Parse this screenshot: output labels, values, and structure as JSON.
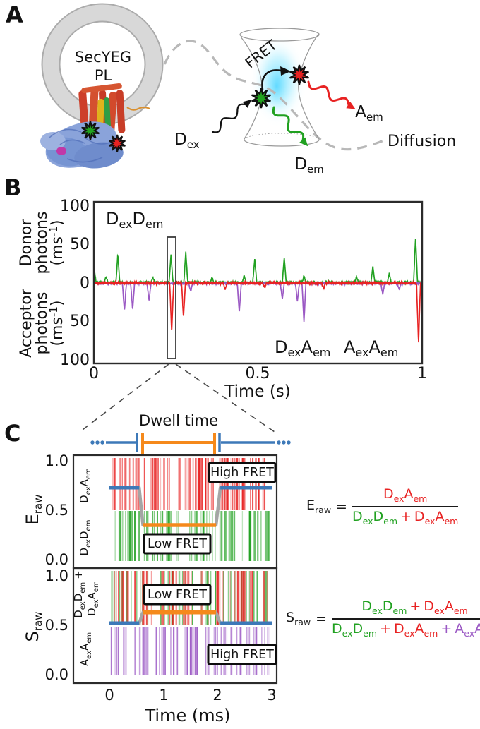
{
  "figure_labels": {
    "a": "A",
    "b": "B",
    "c": "C"
  },
  "terms": {
    "D": "D",
    "A": "A",
    "E": "E",
    "S": "S",
    "ex": "ex",
    "em": "em",
    "raw": "raw"
  },
  "misc": {
    "plus": "+",
    "eq": "=",
    "ms_open": "(ms",
    "ms_sup": "-1",
    "ms_close": ")"
  },
  "colors": {
    "green": "#21a121",
    "red": "#e82222",
    "purple": "#9b59c4",
    "blue": "#3d79b8",
    "orange": "#f5891b",
    "step_gray": "#a5a5a5",
    "diffusion_gray": "#b3b3b3",
    "membrane_gray": "#d8d8d8",
    "glow_cyan": "#86e3ff"
  },
  "panel_a": {
    "vesicle_line1": "SecYEG",
    "vesicle_line2": "PL",
    "fret": "FRET",
    "diffusion": "Diffusion"
  },
  "panel_c": {
    "dwell": "Dwell time",
    "high_fret": "High FRET",
    "low_fret": "Low FRET"
  },
  "chart_data": [
    {
      "id": "photon-traces",
      "type": "line",
      "xlabel": "Time (s)",
      "x_ticks": [
        0,
        0.5,
        1
      ],
      "x_tick_labels": [
        "0",
        "0.5",
        "1"
      ],
      "ylabel_donor": [
        "Donor",
        "photons"
      ],
      "ylabel_acceptor": [
        "Acceptor",
        "photons"
      ],
      "y_units": "(ms^-1)",
      "donor_tick_labels": [
        "100",
        "50",
        "0"
      ],
      "acceptor_tick_labels": [
        "50",
        "100"
      ],
      "ylim_donor": [
        0,
        105
      ],
      "ylim_acceptor": [
        0,
        105
      ],
      "series": [
        {
          "name": "DexDem",
          "role": "donor-emission",
          "color": "#21a121",
          "direction": "up",
          "bursts_t_h": [
            [
              0.001,
              17
            ],
            [
              0.037,
              8
            ],
            [
              0.073,
              36
            ],
            [
              0.18,
              6
            ],
            [
              0.235,
              36
            ],
            [
              0.28,
              39
            ],
            [
              0.36,
              6
            ],
            [
              0.458,
              9
            ],
            [
              0.49,
              30
            ],
            [
              0.58,
              32
            ],
            [
              0.64,
              8
            ],
            [
              0.8,
              7
            ],
            [
              0.85,
              21
            ],
            [
              0.9,
              12
            ],
            [
              0.98,
              57
            ]
          ]
        },
        {
          "name": "AexAem",
          "role": "acceptor-check",
          "color": "#9b59c4",
          "direction": "down",
          "bursts_t_h": [
            [
              0.093,
              36
            ],
            [
              0.118,
              34
            ],
            [
              0.168,
              22
            ],
            [
              0.295,
              10
            ],
            [
              0.443,
              38
            ],
            [
              0.574,
              20
            ],
            [
              0.62,
              23
            ],
            [
              0.64,
              50
            ],
            [
              0.88,
              14
            ],
            [
              0.93,
              8
            ]
          ]
        },
        {
          "name": "DexAem",
          "role": "fret-emission",
          "color": "#e82222",
          "direction": "down",
          "bursts_t_h": [
            [
              0.237,
              64
            ],
            [
              0.273,
              44
            ],
            [
              0.4,
              8
            ],
            [
              0.52,
              6
            ],
            [
              0.7,
              7
            ],
            [
              0.989,
              78
            ]
          ]
        }
      ],
      "zoom_window_s": [
        0.225,
        0.25
      ]
    },
    {
      "id": "eraw-trace",
      "type": "raster+step",
      "ylabel": "Eraw",
      "xlabel": "Time (ms)",
      "xlim": [
        0,
        3
      ],
      "ylim": [
        0,
        1
      ],
      "x_tick_labels": [
        "0",
        "1",
        "2",
        "3"
      ],
      "y_tick_labels": [
        "1.0",
        "0.5",
        "0.0"
      ],
      "dwell_time_ms": [
        0.6,
        2.0
      ],
      "step": {
        "levels": {
          "hf": 0.73,
          "lf": 0.35
        },
        "segments": [
          [
            0,
            0.55,
            "hf"
          ],
          [
            0.62,
            1.97,
            "lf"
          ],
          [
            2.05,
            3,
            "hf"
          ]
        ]
      },
      "rasters": [
        {
          "name": "DexAem",
          "color": "#e82222",
          "band": [
            0.5,
            1.0
          ],
          "count": 100,
          "seed": 7
        },
        {
          "name": "DexDem",
          "color": "#21a121",
          "band": [
            0,
            0.5
          ],
          "count": 85,
          "seed": 13
        }
      ]
    },
    {
      "id": "sraw-trace",
      "type": "raster+step",
      "ylabel": "Sraw",
      "xlabel": "Time (ms)",
      "xlim": [
        0,
        3
      ],
      "ylim": [
        0,
        1
      ],
      "x_tick_labels": [
        "0",
        "1",
        "2",
        "3"
      ],
      "y_tick_labels": [
        "1.0",
        "0.5",
        "0.0"
      ],
      "step": {
        "levels": {
          "hf": 0.52,
          "lf": 0.63
        },
        "segments": [
          [
            0,
            0.55,
            "hf"
          ],
          [
            0.62,
            1.97,
            "lf"
          ],
          [
            2.05,
            3,
            "hf"
          ]
        ]
      },
      "rasters": [
        {
          "name": "DexDem",
          "color": "#21a121",
          "band": [
            0.5,
            1.0
          ],
          "count": 52,
          "seed": 21
        },
        {
          "name": "DexAem",
          "color": "#e82222",
          "band": [
            0.5,
            1.0
          ],
          "count": 60,
          "seed": 31
        },
        {
          "name": "AexAem",
          "color": "#9b59c4",
          "band": [
            0,
            0.5
          ],
          "count": 85,
          "seed": 41
        }
      ]
    }
  ]
}
